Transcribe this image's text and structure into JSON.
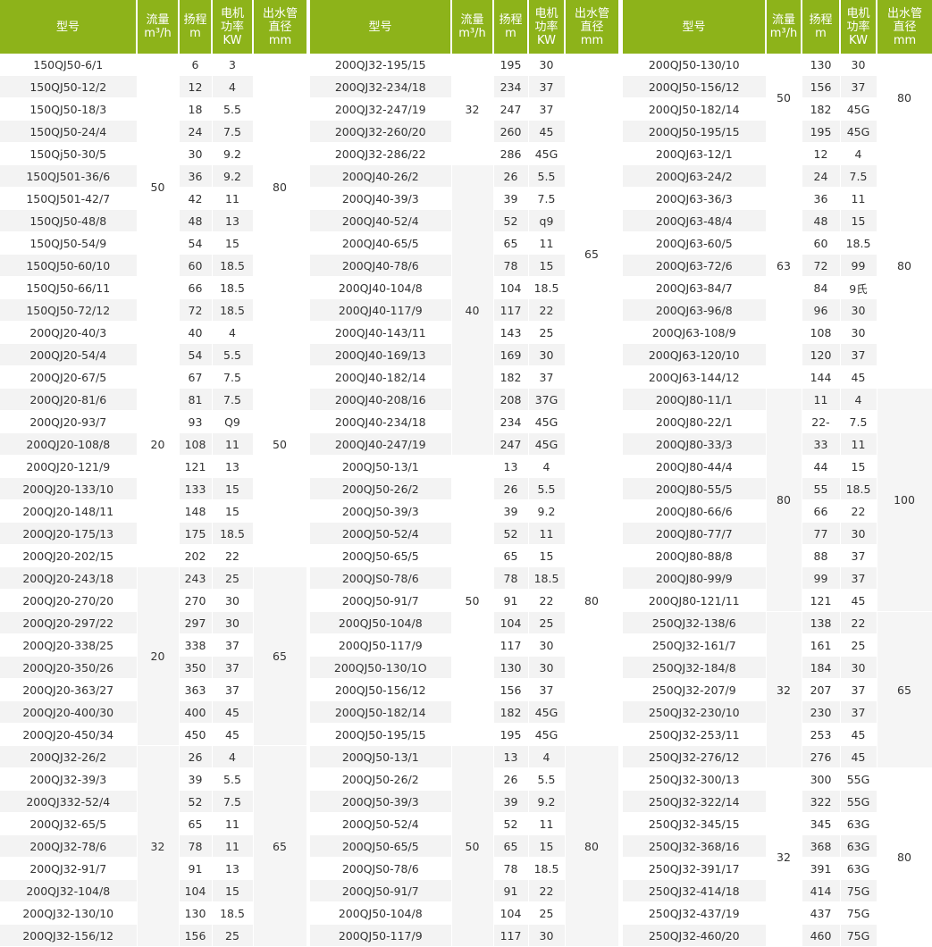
{
  "header": {
    "model": "型号",
    "flow": [
      "流量",
      "m³/h"
    ],
    "head": [
      "扬程",
      "m"
    ],
    "power": [
      "电机",
      "功率",
      "KW"
    ],
    "outlet": [
      "出水管",
      "直径",
      "mm"
    ]
  },
  "colors": {
    "header_bg": "#8db31a",
    "stripe": "#f3f3f3"
  },
  "tables": [
    {
      "rows": [
        [
          "150QJ50-6/1",
          "6",
          "3"
        ],
        [
          "150QJ50-12/2",
          "12",
          "4"
        ],
        [
          "150QJ50-18/3",
          "18",
          "5.5"
        ],
        [
          "150QJ50-24/4",
          "24",
          "7.5"
        ],
        [
          "150Qj50-30/5",
          "30",
          "9.2"
        ],
        [
          "150QJ501-36/6",
          "36",
          "9.2"
        ],
        [
          "150QJ501-42/7",
          "42",
          "11"
        ],
        [
          "150QJ50-48/8",
          "48",
          "13"
        ],
        [
          "150QJ50-54/9",
          "54",
          "15"
        ],
        [
          "150QJ50-60/10",
          "60",
          "18.5"
        ],
        [
          "150QJ50-66/11",
          "66",
          "18.5"
        ],
        [
          "150QJ50-72/12",
          "72",
          "18.5"
        ],
        [
          "200QJ20-40/3",
          "40",
          "4"
        ],
        [
          "200QJ20-54/4",
          "54",
          "5.5"
        ],
        [
          "200QJ20-67/5",
          "67",
          "7.5"
        ],
        [
          "200QJ20-81/6",
          "81",
          "7.5"
        ],
        [
          "200QJ20-93/7",
          "93",
          "Q9"
        ],
        [
          "200QJ20-108/8",
          "108",
          "11"
        ],
        [
          "200QJ20-121/9",
          "121",
          "13"
        ],
        [
          "200QJ20-133/10",
          "133",
          "15"
        ],
        [
          "200QJ20-148/11",
          "148",
          "15"
        ],
        [
          "200QJ20-175/13",
          "175",
          "18.5"
        ],
        [
          "200QJ20-202/15",
          "202",
          "22"
        ],
        [
          "200QJ20-243/18",
          "243",
          "25"
        ],
        [
          "200QJ20-270/20",
          "270",
          "30"
        ],
        [
          "200QJ20-297/22",
          "297",
          "30"
        ],
        [
          "200QJ20-338/25",
          "338",
          "37"
        ],
        [
          "200QJ20-350/26",
          "350",
          "37"
        ],
        [
          "200QJ20-363/27",
          "363",
          "37"
        ],
        [
          "200QJ20-400/30",
          "400",
          "45"
        ],
        [
          "200QJ20-450/34",
          "450",
          "45"
        ],
        [
          "200QJ32-26/2",
          "26",
          "4"
        ],
        [
          "200QJ32-39/3",
          "39",
          "5.5"
        ],
        [
          "200QJ332-52/4",
          "52",
          "7.5"
        ],
        [
          "200QJ32-65/5",
          "65",
          "11"
        ],
        [
          "200QJ32-78/6",
          "78",
          "11"
        ],
        [
          "200QJ32-91/7",
          "91",
          "13"
        ],
        [
          "200QJ32-104/8",
          "104",
          "15"
        ],
        [
          "200QJ32-130/10",
          "130",
          "18.5"
        ],
        [
          "200QJ32-156/12",
          "156",
          "25"
        ]
      ],
      "flow_groups": [
        {
          "value": "50",
          "span": 12
        },
        {
          "value": "20",
          "span": 11
        },
        {
          "value": "20",
          "span": 8
        },
        {
          "value": "32",
          "span": 9
        }
      ],
      "outlet_groups": [
        {
          "value": "80",
          "span": 12
        },
        {
          "value": "50",
          "span": 11
        },
        {
          "value": "65",
          "span": 8
        },
        {
          "value": "65",
          "span": 9
        }
      ]
    },
    {
      "rows": [
        [
          "200QJ32-195/15",
          "195",
          "30"
        ],
        [
          "200QJ32-234/18",
          "234",
          "37"
        ],
        [
          "200QJ32-247/19",
          "247",
          "37"
        ],
        [
          "200QJ32-260/20",
          "260",
          "45"
        ],
        [
          "200QJ32-286/22",
          "286",
          "45G"
        ],
        [
          "200QJ40-26/2",
          "26",
          "5.5"
        ],
        [
          "200QJ40-39/3",
          "39",
          "7.5"
        ],
        [
          "200QJ40-52/4",
          "52",
          "q9"
        ],
        [
          "200QJ40-65/5",
          "65",
          "11"
        ],
        [
          "200QJ40-78/6",
          "78",
          "15"
        ],
        [
          "200QJ40-104/8",
          "104",
          "18.5"
        ],
        [
          "200QJ40-117/9",
          "117",
          "22"
        ],
        [
          "200QJ40-143/11",
          "143",
          "25"
        ],
        [
          "200QJ40-169/13",
          "169",
          "30"
        ],
        [
          "200QJ40-182/14",
          "182",
          "37"
        ],
        [
          "200QJ40-208/16",
          "208",
          "37G"
        ],
        [
          "200QJ40-234/18",
          "234",
          "45G"
        ],
        [
          "200QJ40-247/19",
          "247",
          "45G"
        ],
        [
          "200QJ50-13/1",
          "13",
          "4"
        ],
        [
          "200QJ50-26/2",
          "26",
          "5.5"
        ],
        [
          "200QJ50-39/3",
          "39",
          "9.2"
        ],
        [
          "200QJ50-52/4",
          "52",
          "11"
        ],
        [
          "200QJ50-65/5",
          "65",
          "15"
        ],
        [
          "200QJS0-78/6",
          "78",
          "18.5"
        ],
        [
          "200QJ50-91/7",
          "91",
          "22"
        ],
        [
          "200QJ50-104/8",
          "104",
          "25"
        ],
        [
          "200QJ50-117/9",
          "117",
          "30"
        ],
        [
          "200QJ50-130/1O",
          "130",
          "30"
        ],
        [
          "200QJ50-156/12",
          "156",
          "37"
        ],
        [
          "200QJ50-182/14",
          "182",
          "45G"
        ],
        [
          "200QJ50-195/15",
          "195",
          "45G"
        ],
        [
          "200QJ50-13/1",
          "13",
          "4"
        ],
        [
          "200QJ50-26/2",
          "26",
          "5.5"
        ],
        [
          "200QJ50-39/3",
          "39",
          "9.2"
        ],
        [
          "200QJ50-52/4",
          "52",
          "11"
        ],
        [
          "200QJ50-65/5",
          "65",
          "15"
        ],
        [
          "200QJS0-78/6",
          "78",
          "18.5"
        ],
        [
          "200QJ50-91/7",
          "91",
          "22"
        ],
        [
          "200QJ50-104/8",
          "104",
          "25"
        ],
        [
          "200QJ50-117/9",
          "117",
          "30"
        ]
      ],
      "flow_groups": [
        {
          "value": "32",
          "span": 5
        },
        {
          "value": "40",
          "span": 13
        },
        {
          "value": "50",
          "span": 13
        },
        {
          "value": "50",
          "span": 9
        }
      ],
      "outlet_groups": [
        {
          "value": "65",
          "span": 18
        },
        {
          "value": "80",
          "span": 13
        },
        {
          "value": "80",
          "span": 9
        }
      ]
    },
    {
      "rows": [
        [
          "200QJ50-130/10",
          "130",
          "30"
        ],
        [
          "200QJ50-156/12",
          "156",
          "37"
        ],
        [
          "200QJ50-182/14",
          "182",
          "45G"
        ],
        [
          "200QJ50-195/15",
          "195",
          "45G"
        ],
        [
          "200QJ63-12/1",
          "12",
          "4"
        ],
        [
          "200QJ63-24/2",
          "24",
          "7.5"
        ],
        [
          "200QJ63-36/3",
          "36",
          "11"
        ],
        [
          "200QJ63-48/4",
          "48",
          "15"
        ],
        [
          "200QJ63-60/5",
          "60",
          "18.5"
        ],
        [
          "200QJ63-72/6",
          "72",
          "99"
        ],
        [
          "200QJ63-84/7",
          "84",
          "9氏"
        ],
        [
          "200QJ63-96/8",
          "96",
          "30"
        ],
        [
          "200QJ63-108/9",
          "108",
          "30"
        ],
        [
          "200QJ63-120/10",
          "120",
          "37"
        ],
        [
          "200QJ63-144/12",
          "144",
          "45"
        ],
        [
          "200QJ80-11/1",
          "11",
          "4"
        ],
        [
          "200QJ80-22/1",
          "22-",
          "7.5"
        ],
        [
          "200QJ80-33/3",
          "33",
          "11"
        ],
        [
          "200QJ80-44/4",
          "44",
          "15"
        ],
        [
          "200QJ80-55/5",
          "55",
          "18.5"
        ],
        [
          "200QJ80-66/6",
          "66",
          "22"
        ],
        [
          "200QJ80-77/7",
          "77",
          "30"
        ],
        [
          "200QJ80-88/8",
          "88",
          "37"
        ],
        [
          "200QJ80-99/9",
          "99",
          "37"
        ],
        [
          "200QJ80-121/11",
          "121",
          "45"
        ],
        [
          "250QJ32-138/6",
          "138",
          "22"
        ],
        [
          "250QJ32-161/7",
          "161",
          "25"
        ],
        [
          "250QJ32-184/8",
          "184",
          "30"
        ],
        [
          "250QJ32-207/9",
          "207",
          "37"
        ],
        [
          "250QJ32-230/10",
          "230",
          "37"
        ],
        [
          "250QJ32-253/11",
          "253",
          "45"
        ],
        [
          "250QJ32-276/12",
          "276",
          "45"
        ],
        [
          "250QJ32-300/13",
          "300",
          "55G"
        ],
        [
          "250QJ32-322/14",
          "322",
          "55G"
        ],
        [
          "250QJ32-345/15",
          "345",
          "63G"
        ],
        [
          "250QJ32-368/16",
          "368",
          "63G"
        ],
        [
          "250QJ32-391/17",
          "391",
          "63G"
        ],
        [
          "250QJ32-414/18",
          "414",
          "75G"
        ],
        [
          "250QJ32-437/19",
          "437",
          "75G"
        ],
        [
          "250QJ32-460/20",
          "460",
          "75G"
        ]
      ],
      "flow_groups": [
        {
          "value": "50",
          "span": 4
        },
        {
          "value": "63",
          "span": 11
        },
        {
          "value": "80",
          "span": 10
        },
        {
          "value": "32",
          "span": 7
        },
        {
          "value": "32",
          "span": 8
        }
      ],
      "outlet_groups": [
        {
          "value": "80",
          "span": 4
        },
        {
          "value": "80",
          "span": 11
        },
        {
          "value": "100",
          "span": 10
        },
        {
          "value": "65",
          "span": 7
        },
        {
          "value": "80",
          "span": 8
        }
      ]
    }
  ]
}
